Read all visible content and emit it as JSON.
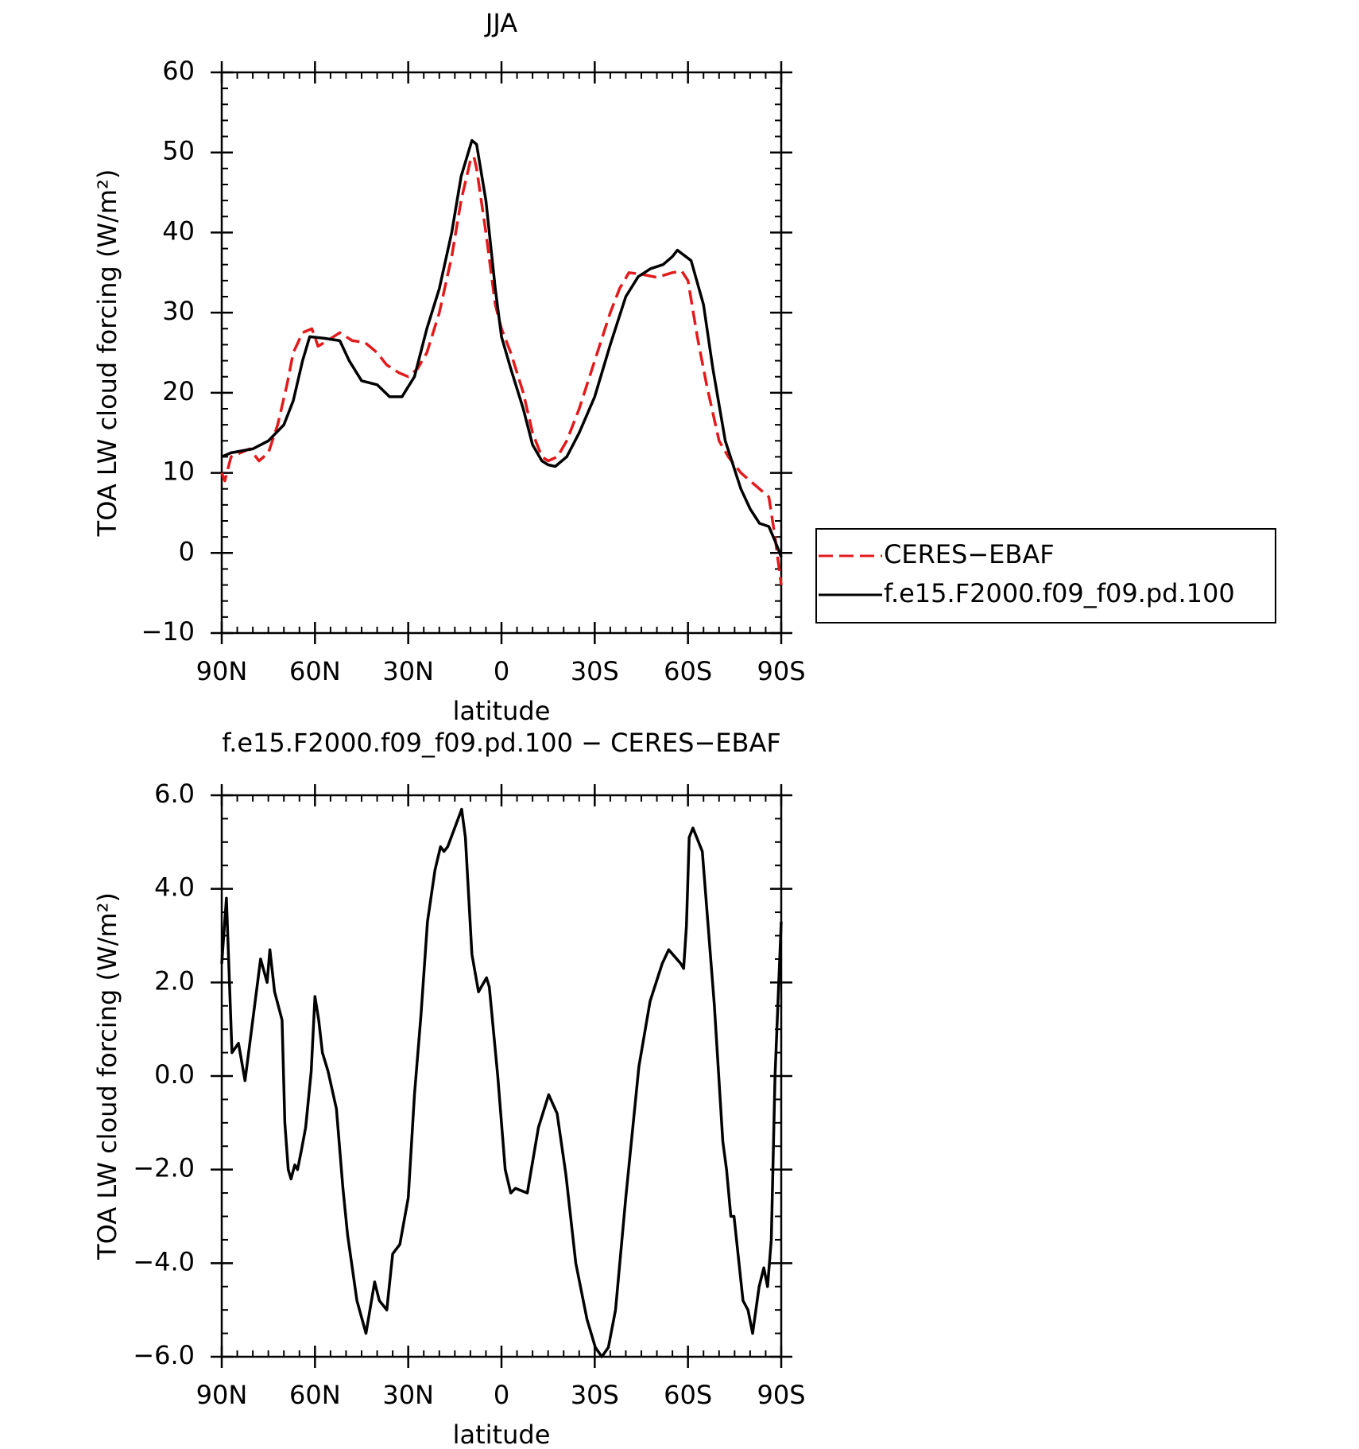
{
  "chart_data": [
    {
      "type": "line",
      "title": "JJA",
      "xlabel": "latitude",
      "ylabel": "TOA LW cloud forcing (W/m²)",
      "xlim": [
        90,
        -90
      ],
      "xticks": [
        {
          "value": 90,
          "label": "90N"
        },
        {
          "value": 60,
          "label": "60N"
        },
        {
          "value": 30,
          "label": "30N"
        },
        0,
        {
          "value": -30,
          "label": "30S"
        },
        {
          "value": -60,
          "label": "60S"
        },
        {
          "value": -90,
          "label": "90S"
        }
      ],
      "ylim": [
        -10,
        60
      ],
      "yticks": [
        {
          "value": -10,
          "label": "−10"
        },
        0,
        10,
        20,
        30,
        40,
        50,
        60
      ],
      "legend": "right",
      "series": [
        {
          "name": "CERES−EBAF",
          "color": "#e31a1c",
          "dash": true,
          "x": [
            90,
            89,
            87,
            84,
            81,
            78,
            75,
            72,
            69,
            67,
            64,
            61,
            59,
            56,
            52,
            48,
            44,
            40,
            37,
            33,
            30,
            27,
            24,
            20,
            16,
            13,
            10,
            8.9,
            8,
            5,
            2,
            0,
            -3,
            -7,
            -10,
            -13,
            -15,
            -18,
            -21,
            -25,
            -30,
            -35,
            -38,
            -41,
            -45,
            -50,
            -55,
            -58,
            -60,
            -63,
            -66,
            -70,
            -73,
            -77,
            -80,
            -83,
            -86,
            -88,
            -90
          ],
          "values": [
            10,
            9,
            12,
            12.5,
            13,
            11.5,
            12.5,
            16,
            21,
            25,
            27.5,
            28,
            25.8,
            26.5,
            27.5,
            26.5,
            26.3,
            25,
            23.5,
            22.5,
            22,
            23,
            25,
            30,
            37,
            44,
            49,
            49.5,
            48,
            40,
            31,
            28,
            25,
            20,
            15,
            12,
            11.5,
            12,
            14,
            18,
            24,
            30,
            33,
            35,
            34.8,
            34.4,
            35,
            35.2,
            34,
            27,
            21,
            14,
            12,
            10,
            9,
            8,
            7,
            2,
            -4
          ]
        },
        {
          "name": "f.e15.F2000.f09_f09.pd.100",
          "color": "#000000",
          "dash": false,
          "x": [
            90,
            87,
            80,
            75,
            70,
            67,
            64,
            61.7,
            57,
            52,
            49,
            45,
            40,
            36,
            32,
            28,
            24,
            20,
            16,
            13,
            9.5,
            8,
            5,
            2,
            0,
            -3,
            -7,
            -10,
            -13,
            -15,
            -17.3,
            -21,
            -25,
            -30,
            -35,
            -40,
            -44,
            -48,
            -52,
            -55,
            -56.6,
            -61,
            -65,
            -68,
            -72,
            -77,
            -80,
            -83,
            -86,
            -88,
            -90
          ],
          "values": [
            12,
            12.5,
            13,
            14,
            16,
            19,
            24,
            27,
            26.8,
            26.5,
            24,
            21.5,
            21,
            19.5,
            19.5,
            22,
            28,
            33,
            40,
            47,
            51.5,
            51,
            44,
            33,
            27,
            23,
            18,
            13.5,
            11.5,
            11,
            10.8,
            12,
            15,
            19.5,
            26,
            32,
            34.5,
            35.5,
            36,
            37,
            37.8,
            36.5,
            31,
            23,
            14,
            8,
            5.5,
            3.7,
            3.3,
            1.5,
            -0.5
          ]
        }
      ]
    },
    {
      "type": "line",
      "title": "f.e15.F2000.f09_f09.pd.100 − CERES−EBAF",
      "xlabel": "latitude",
      "ylabel": "TOA LW cloud forcing (W/m²)",
      "xlim": [
        90,
        -90
      ],
      "xticks": [
        {
          "value": 90,
          "label": "90N"
        },
        {
          "value": 60,
          "label": "60N"
        },
        {
          "value": 30,
          "label": "30N"
        },
        0,
        {
          "value": -30,
          "label": "30S"
        },
        {
          "value": -60,
          "label": "60S"
        },
        {
          "value": -90,
          "label": "90S"
        }
      ],
      "ylim": [
        -6,
        6
      ],
      "yticks": [
        {
          "value": -6,
          "label": "−6.0"
        },
        {
          "value": -4,
          "label": "−4.0"
        },
        {
          "value": -2,
          "label": "−2.0"
        },
        {
          "value": 0,
          "label": "0.0"
        },
        {
          "value": 2,
          "label": "2.0"
        },
        {
          "value": 4,
          "label": "4.0"
        },
        {
          "value": 6,
          "label": "6.0"
        }
      ],
      "series": [
        {
          "color": "#000000",
          "dash": false,
          "x": [
            90,
            88.5,
            86.7,
            84.6,
            82.5,
            77.5,
            75.4,
            74.5,
            73,
            70.6,
            69.7,
            68.6,
            67.7,
            66.5,
            65.6,
            64.4,
            63,
            61.2,
            60,
            58.8,
            57.6,
            55.8,
            53.1,
            51,
            49.5,
            46.5,
            43.6,
            40.8,
            39.3,
            36.9,
            35,
            32.7,
            30,
            28,
            25.9,
            23.8,
            21.4,
            19.6,
            18.5,
            17.3,
            12.8,
            11.6,
            9.5,
            7.4,
            4.8,
            3.9,
            1.2,
            -1.2,
            -3,
            -4.5,
            -8.3,
            -11.9,
            -15.2,
            -17.9,
            -20.7,
            -23.9,
            -27.5,
            -30.2,
            -32.3,
            -34.4,
            -36.7,
            -40,
            -44.2,
            -47.8,
            -51.7,
            -53.8,
            -57.7,
            -58.6,
            -59.5,
            -60.4,
            -61.6,
            -63.4,
            -64.6,
            -68.5,
            -71.2,
            -72.4,
            -73.8,
            -74.8,
            -77.7,
            -79.3,
            -80.8,
            -82.9,
            -84.4,
            -85.6,
            -86.8,
            -88,
            -89.2,
            -90
          ],
          "values": [
            2.4,
            3.8,
            0.5,
            0.7,
            -0.1,
            2.5,
            2.0,
            2.7,
            1.8,
            1.2,
            -1.0,
            -2.0,
            -2.2,
            -1.9,
            -2.0,
            -1.6,
            -1.1,
            0.1,
            1.7,
            1.2,
            0.5,
            0.1,
            -0.7,
            -2.4,
            -3.4,
            -4.8,
            -5.5,
            -4.4,
            -4.8,
            -5.0,
            -3.8,
            -3.6,
            -2.6,
            -0.4,
            1.3,
            3.3,
            4.4,
            4.9,
            4.8,
            4.9,
            5.7,
            5.1,
            2.6,
            1.8,
            2.1,
            1.9,
            0.0,
            -2.0,
            -2.5,
            -2.4,
            -2.5,
            -1.1,
            -0.4,
            -0.8,
            -2.1,
            -4.0,
            -5.2,
            -5.8,
            -6.0,
            -5.8,
            -5.0,
            -2.6,
            0.2,
            1.6,
            2.4,
            2.7,
            2.4,
            2.3,
            3.2,
            5.1,
            5.3,
            5.0,
            4.8,
            1.5,
            -1.4,
            -2.0,
            -3.0,
            -3.0,
            -4.8,
            -5.0,
            -5.5,
            -4.5,
            -4.1,
            -4.5,
            -3.5,
            0.0,
            2.0,
            3.3
          ]
        }
      ]
    }
  ]
}
